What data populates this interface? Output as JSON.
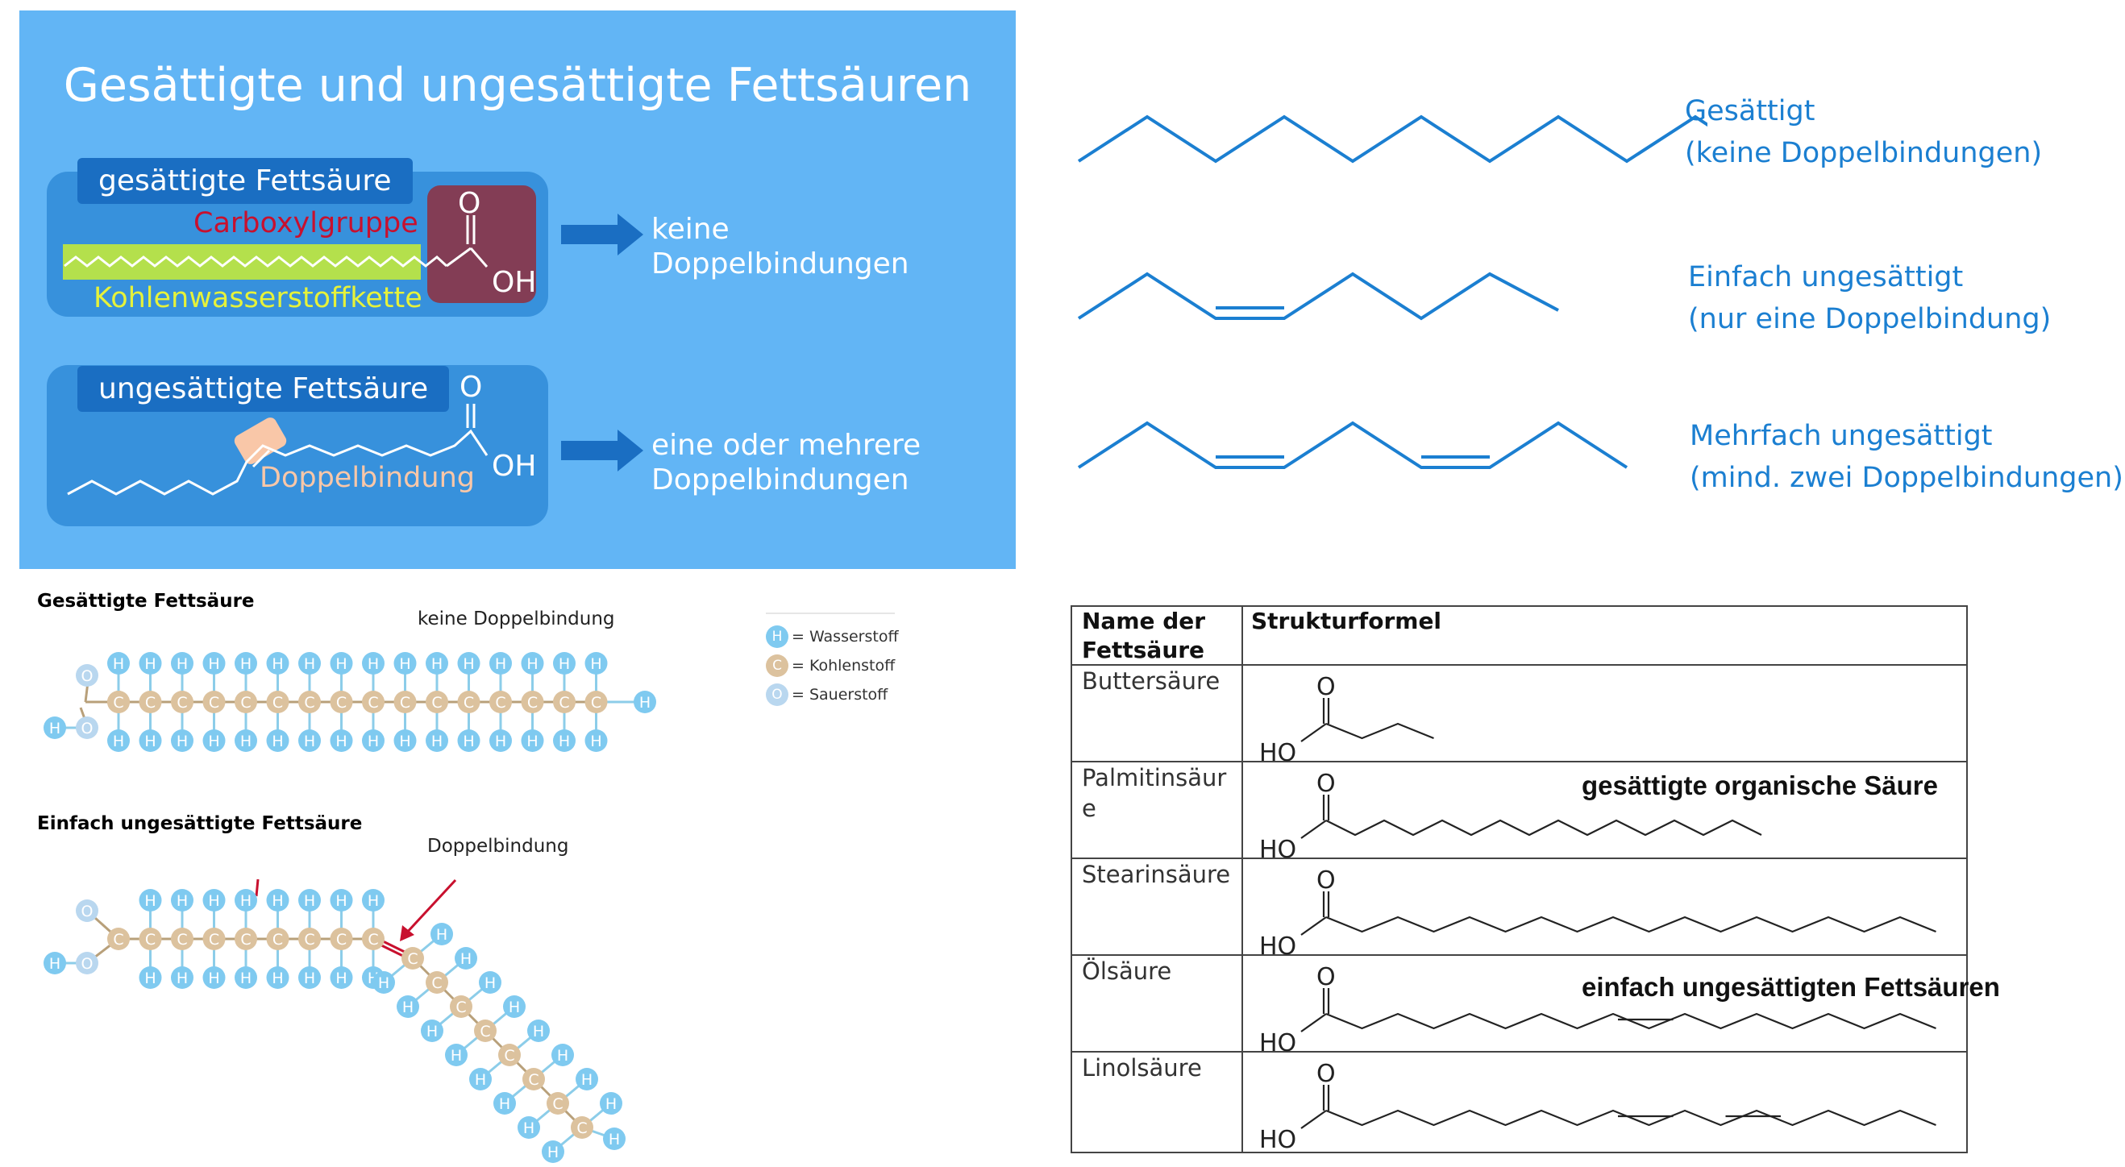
{
  "panel": {
    "title": "Gesättigte und ungesättigte Fettsäuren",
    "saturated": {
      "tag": "gesättigte Fettsäure",
      "carboxyl": "Carboxylgruppe",
      "chain": "Kohlenwasserstoffkette",
      "o": "O",
      "oh": "OH",
      "result_line1": "keine",
      "result_line2": "Doppelbindungen"
    },
    "unsaturated": {
      "tag": "ungesättigte Fettsäure",
      "double_bond": "Doppelbindung",
      "o": "O",
      "oh": "OH",
      "result_line1": "eine oder mehrere",
      "result_line2": "Doppelbindungen"
    },
    "colors": {
      "background": "#62b5f5",
      "box": "#3791dc",
      "tag": "#1a6ec2",
      "carboxyl_box": "#833d55",
      "chain_highlight": "#b4e04c",
      "chain_label": "#e6f23a",
      "carboxyl_label": "#c8102e",
      "double_bond_label": "#f9c7a8"
    }
  },
  "right_chains": [
    {
      "line1": "Gesättigt",
      "line2": "(keine Doppelbindungen)"
    },
    {
      "line1": "Einfach ungesättigt",
      "line2": "(nur eine Doppelbindung)"
    },
    {
      "line1": "Mehrfach ungesättigt",
      "line2": "(mind. zwei Doppelbindungen)"
    }
  ],
  "atom_model": {
    "saturated_heading": "Gesättigte Fettsäure",
    "saturated_note": "keine Doppelbindung",
    "unsaturated_heading": "Einfach ungesättigte Fettsäure",
    "unsaturated_note": "Doppelbindung",
    "legend": [
      {
        "symbol": "H",
        "label": "= Wasserstoff",
        "color": "#7fcaf0"
      },
      {
        "symbol": "C",
        "label": "= Kohlenstoff",
        "color": "#dcc29e"
      },
      {
        "symbol": "O",
        "label": "= Sauerstoff",
        "color": "#b9d7ef"
      }
    ],
    "symbols": {
      "h": "H",
      "c": "C",
      "o": "O"
    }
  },
  "table": {
    "col1_header_line1": "Name der",
    "col1_header_line2": "Fettsäure",
    "col2_header": "Strukturformel",
    "rows": [
      {
        "name": "Buttersäure",
        "note": ""
      },
      {
        "name": "Palmitinsäur",
        "name_cont": "e",
        "note": "gesättigte organische Säure"
      },
      {
        "name": "Stearinsäure",
        "note": ""
      },
      {
        "name": "Ölsäure",
        "note": "einfach ungesättigten Fettsäuren"
      },
      {
        "name": "Linolsäure",
        "note": ""
      }
    ],
    "o": "O",
    "ho": "HO"
  }
}
